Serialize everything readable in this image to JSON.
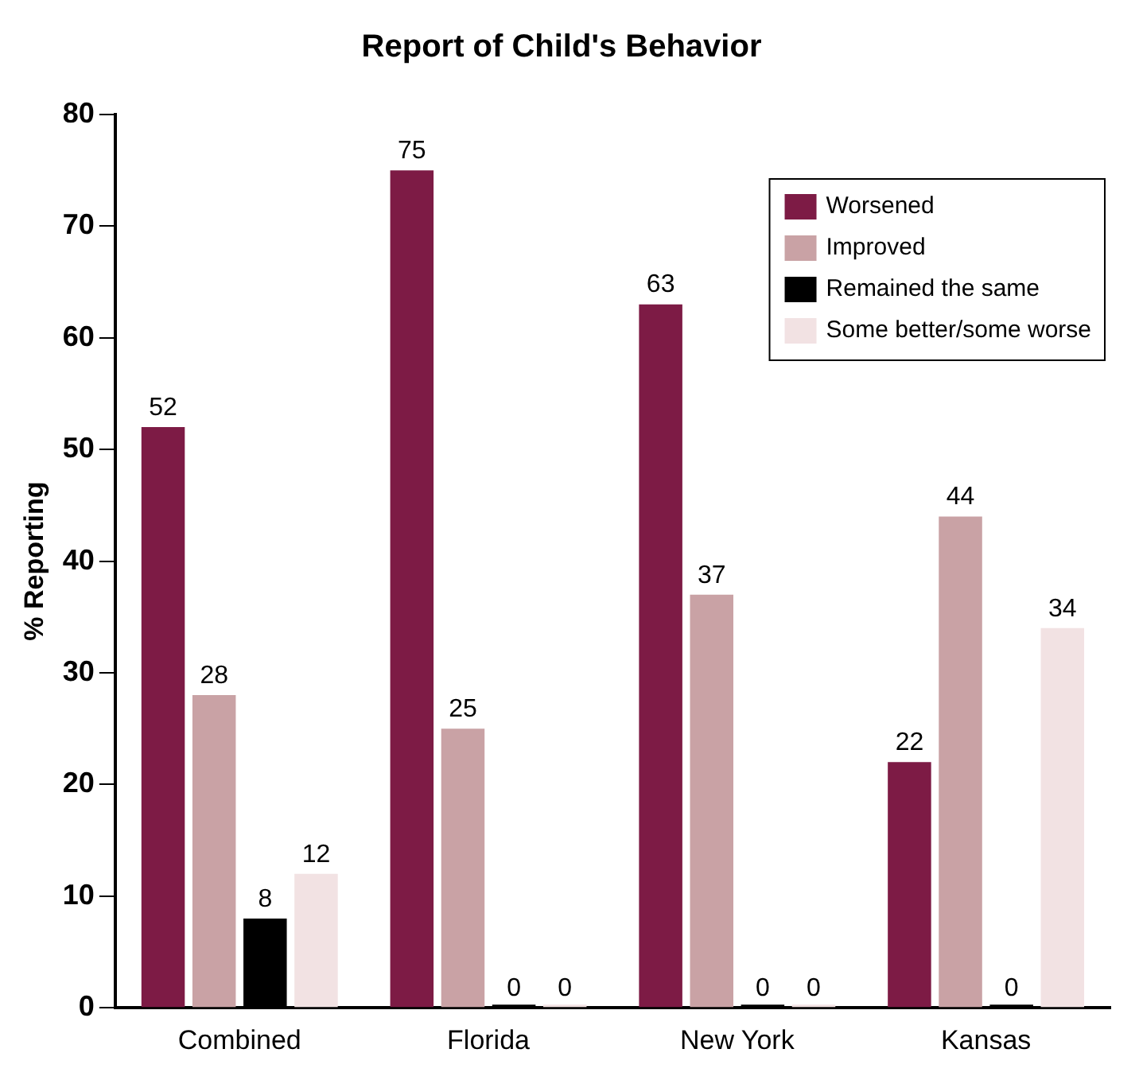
{
  "chart_data": {
    "type": "bar",
    "title": "Report of Child's Behavior",
    "ylabel": "% Reporting",
    "categories": [
      "Combined",
      "Florida",
      "New York",
      "Kansas"
    ],
    "series": [
      {
        "name": "Worsened",
        "color": "#7d1b45",
        "values": [
          52,
          75,
          63,
          22
        ]
      },
      {
        "name": "Improved",
        "color": "#c9a2a5",
        "values": [
          28,
          25,
          37,
          44
        ]
      },
      {
        "name": "Remained the same",
        "color": "#000000",
        "values": [
          8,
          0,
          0,
          0
        ]
      },
      {
        "name": "Some better/some worse",
        "color": "#f2e2e3",
        "values": [
          12,
          0,
          0,
          34
        ]
      }
    ],
    "ylim": [
      0,
      80
    ],
    "yticks": [
      0,
      10,
      20,
      30,
      40,
      50,
      60,
      70,
      80
    ],
    "grid": false,
    "legend": "top right",
    "data_labels": true
  }
}
